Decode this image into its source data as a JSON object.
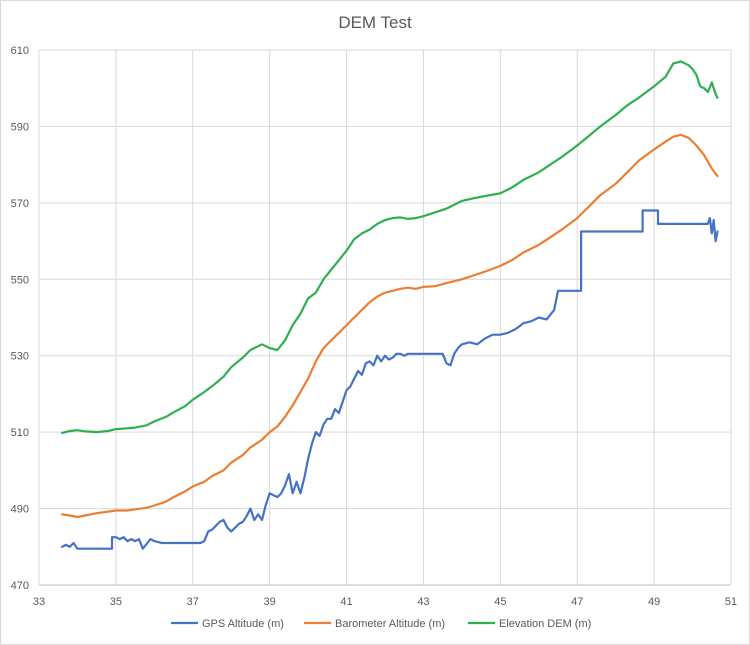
{
  "chart_data": {
    "type": "line",
    "title": "DEM Test",
    "xlabel": "",
    "ylabel": "",
    "xlim": [
      33,
      51
    ],
    "ylim": [
      470,
      610
    ],
    "x_ticks": [
      33,
      35,
      37,
      39,
      41,
      43,
      45,
      47,
      49,
      51
    ],
    "y_ticks": [
      470,
      490,
      510,
      530,
      550,
      570,
      590,
      610
    ],
    "grid": true,
    "legend_position": "bottom",
    "series": [
      {
        "name": "GPS Altitude (m)",
        "color": "#4472c4",
        "x": [
          33.6,
          33.7,
          33.8,
          33.9,
          34.0,
          34.9,
          34.9,
          35.0,
          35.1,
          35.2,
          35.3,
          35.4,
          35.5,
          35.6,
          35.7,
          35.9,
          36.0,
          36.2,
          36.5,
          37.0,
          37.2,
          37.3,
          37.4,
          37.5,
          37.6,
          37.7,
          37.8,
          37.9,
          38.0,
          38.1,
          38.2,
          38.3,
          38.4,
          38.5,
          38.6,
          38.7,
          38.8,
          38.9,
          39.0,
          39.2,
          39.3,
          39.4,
          39.5,
          39.6,
          39.7,
          39.8,
          39.9,
          40.0,
          40.1,
          40.2,
          40.3,
          40.4,
          40.5,
          40.6,
          40.7,
          40.8,
          40.9,
          41.0,
          41.1,
          41.2,
          41.3,
          41.4,
          41.5,
          41.6,
          41.7,
          41.8,
          41.9,
          42.0,
          42.1,
          42.2,
          42.3,
          42.4,
          42.5,
          42.6,
          42.8,
          43.0,
          43.3,
          43.5,
          43.6,
          43.7,
          43.8,
          43.9,
          44.0,
          44.2,
          44.4,
          44.6,
          44.8,
          45.0,
          45.2,
          45.4,
          45.6,
          45.8,
          46.0,
          46.2,
          46.4,
          46.5,
          46.6,
          46.7,
          47.0,
          47.1,
          47.1,
          47.2,
          47.5,
          48.0,
          48.4,
          48.7,
          48.7,
          49.0,
          49.1,
          49.1,
          49.5,
          50.0,
          50.3,
          50.4,
          50.45,
          50.5,
          50.55,
          50.6,
          50.65
        ],
        "values": [
          480,
          480.5,
          480,
          481,
          479.5,
          479.5,
          482.5,
          482.5,
          482,
          482.5,
          481.5,
          482,
          481.5,
          482,
          479.5,
          482,
          481.5,
          481,
          481,
          481,
          481,
          481.5,
          484,
          484.5,
          485.5,
          486.5,
          487,
          485,
          484,
          485,
          486,
          486.5,
          488,
          490,
          487,
          488.5,
          487,
          491,
          494,
          493,
          494,
          496,
          499,
          494,
          497,
          494,
          498,
          503,
          507,
          510,
          509,
          512,
          513.5,
          513.5,
          516,
          515,
          518,
          521,
          522,
          524,
          526,
          525,
          528,
          528.5,
          527.5,
          530,
          528.5,
          530,
          529,
          529.5,
          530.5,
          530.5,
          530,
          530.5,
          530.5,
          530.5,
          530.5,
          530.5,
          528,
          527.5,
          530.5,
          532,
          533,
          533.5,
          533,
          534.5,
          535.5,
          535.5,
          536,
          537,
          538.5,
          539,
          540,
          539.5,
          542,
          547,
          547,
          547,
          547,
          547,
          562.5,
          562.5,
          562.5,
          562.5,
          562.5,
          562.5,
          568,
          568,
          568,
          564.5,
          564.5,
          564.5,
          564.5,
          564.5,
          566,
          562,
          565.5,
          560,
          562.5
        ]
      },
      {
        "name": "Barometer Altitude (m)",
        "color": "#ed7d31",
        "x": [
          33.6,
          33.8,
          34.0,
          34.2,
          34.5,
          34.8,
          35.0,
          35.3,
          35.5,
          35.8,
          36.0,
          36.3,
          36.5,
          36.8,
          37.0,
          37.3,
          37.5,
          37.8,
          38.0,
          38.3,
          38.5,
          38.8,
          39.0,
          39.2,
          39.4,
          39.6,
          39.8,
          40.0,
          40.2,
          40.4,
          40.6,
          40.8,
          41.0,
          41.2,
          41.4,
          41.6,
          41.8,
          42.0,
          42.2,
          42.4,
          42.6,
          42.8,
          43.0,
          43.3,
          43.6,
          44.0,
          44.3,
          44.6,
          45.0,
          45.3,
          45.6,
          46.0,
          46.3,
          46.6,
          47.0,
          47.3,
          47.6,
          48.0,
          48.3,
          48.6,
          49.0,
          49.3,
          49.5,
          49.7,
          49.9,
          50.1,
          50.3,
          50.5,
          50.65
        ],
        "values": [
          488.5,
          488.2,
          487.8,
          488.2,
          488.8,
          489.2,
          489.5,
          489.5,
          489.8,
          490.2,
          490.8,
          491.8,
          493,
          494.5,
          495.8,
          497,
          498.5,
          500,
          502,
          504,
          506,
          508,
          510,
          511.5,
          514,
          517,
          520.5,
          524,
          528.5,
          532,
          534,
          536,
          538,
          540,
          542,
          544,
          545.5,
          546.5,
          547,
          547.5,
          547.8,
          547.5,
          548,
          548.2,
          549,
          550,
          551,
          552,
          553.5,
          555,
          557,
          559,
          561,
          563,
          566,
          569,
          572,
          575,
          578,
          581,
          584,
          586,
          587.3,
          587.8,
          587,
          585,
          582.5,
          579,
          577
        ]
      },
      {
        "name": "Elevation DEM (m)",
        "color": "#2fb04e",
        "x": [
          33.6,
          33.8,
          34.0,
          34.2,
          34.5,
          34.8,
          35.0,
          35.3,
          35.5,
          35.8,
          36.0,
          36.3,
          36.5,
          36.8,
          37.0,
          37.3,
          37.5,
          37.8,
          38.0,
          38.3,
          38.5,
          38.8,
          39.0,
          39.2,
          39.4,
          39.6,
          39.8,
          40.0,
          40.2,
          40.4,
          40.6,
          40.8,
          41.0,
          41.2,
          41.4,
          41.6,
          41.8,
          42.0,
          42.2,
          42.4,
          42.6,
          42.8,
          43.0,
          43.3,
          43.6,
          44.0,
          44.3,
          44.6,
          45.0,
          45.3,
          45.6,
          46.0,
          46.3,
          46.6,
          47.0,
          47.3,
          47.6,
          48.0,
          48.3,
          48.6,
          49.0,
          49.3,
          49.5,
          49.7,
          49.9,
          50.0,
          50.1,
          50.2,
          50.3,
          50.4,
          50.5,
          50.6,
          50.65
        ],
        "values": [
          509.8,
          510.3,
          510.5,
          510.2,
          510,
          510.3,
          510.8,
          511,
          511.2,
          511.8,
          512.8,
          514,
          515.2,
          516.8,
          518.5,
          520.5,
          522,
          524.5,
          527,
          529.5,
          531.5,
          533,
          532,
          531.5,
          534,
          538,
          541,
          545,
          546.5,
          550,
          552.5,
          555,
          557.5,
          560.5,
          562,
          563,
          564.5,
          565.5,
          566,
          566.2,
          565.8,
          566,
          566.5,
          567.5,
          568.5,
          570.5,
          571.2,
          571.8,
          572.5,
          574,
          576,
          578,
          580,
          582,
          585,
          587.5,
          590,
          593,
          595.5,
          597.5,
          600.5,
          603,
          606.5,
          607,
          606,
          605,
          603.5,
          600.5,
          600,
          599,
          601.5,
          598.5,
          597.5
        ]
      }
    ]
  }
}
